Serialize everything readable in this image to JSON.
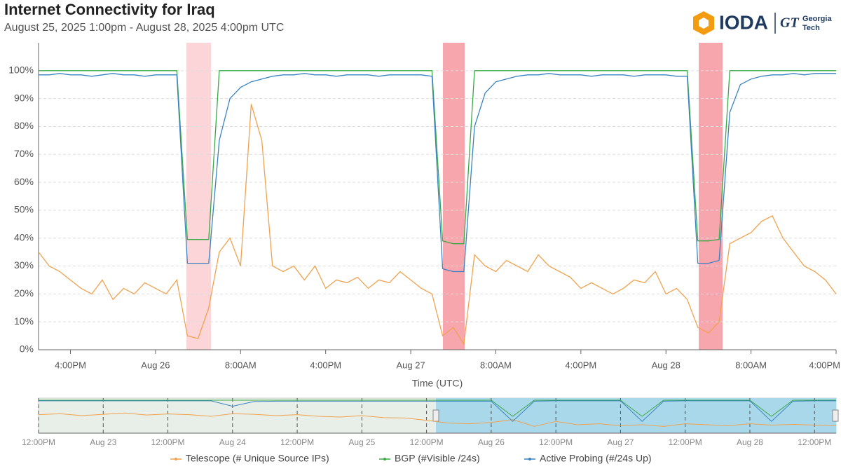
{
  "branding": {
    "logo": "IODA",
    "mark": "GT",
    "org_line1": "Georgia",
    "org_line2": "Tech"
  },
  "chart_data": [
    {
      "type": "line",
      "title": "Internet Connectivity for Iraq",
      "subtitle": "August 25, 2025 1:00pm - August 28, 2025 4:00pm UTC",
      "x_label": "Time (UTC)",
      "categories": [
        null,
        null,
        null,
        "4:00PM",
        null,
        null,
        null,
        null,
        null,
        null,
        null,
        "Aug 26",
        null,
        null,
        null,
        null,
        null,
        null,
        null,
        "8:00AM",
        null,
        null,
        null,
        null,
        null,
        null,
        null,
        "4:00PM",
        null,
        null,
        null,
        null,
        null,
        null,
        null,
        "Aug 27",
        null,
        null,
        null,
        null,
        null,
        null,
        null,
        "8:00AM",
        null,
        null,
        null,
        null,
        null,
        null,
        null,
        "4:00PM",
        null,
        null,
        null,
        null,
        null,
        null,
        null,
        "Aug 28",
        null,
        null,
        null,
        null,
        null,
        null,
        null,
        "8:00AM",
        null,
        null,
        null,
        null,
        null,
        null,
        null,
        "4:00PM"
      ],
      "ylim": [
        0,
        110
      ],
      "yticks": [
        {
          "value": 0,
          "label": "0%"
        },
        {
          "value": 10,
          "label": "10%"
        },
        {
          "value": 20,
          "label": "20%"
        },
        {
          "value": 30,
          "label": "30%"
        },
        {
          "value": 40,
          "label": "40%"
        },
        {
          "value": 50,
          "label": "50%"
        },
        {
          "value": 60,
          "label": "60%"
        },
        {
          "value": 70,
          "label": "70%"
        },
        {
          "value": 80,
          "label": "80%"
        },
        {
          "value": 90,
          "label": "90%"
        },
        {
          "value": 100,
          "label": "100%"
        }
      ],
      "grid": true,
      "legend": "bottom",
      "series": [
        {
          "name": "Telescope (# Unique Source IPs)",
          "color": "#f0a24f",
          "values": [
            35,
            30,
            28,
            25,
            22,
            20,
            25,
            18,
            22,
            20,
            24,
            22,
            20,
            25,
            5,
            4,
            15,
            35,
            40,
            30,
            88,
            75,
            30,
            28,
            30,
            25,
            30,
            22,
            25,
            24,
            26,
            22,
            25,
            24,
            28,
            25,
            22,
            20,
            5,
            8,
            2,
            34,
            30,
            28,
            32,
            30,
            28,
            34,
            30,
            28,
            26,
            22,
            24,
            22,
            20,
            22,
            25,
            24,
            28,
            20,
            22,
            18,
            8,
            6,
            10,
            38,
            40,
            42,
            46,
            48,
            40,
            35,
            30,
            28,
            25,
            20
          ]
        },
        {
          "name": "BGP (#Visible /24s)",
          "color": "#3aa846",
          "values": [
            100,
            100,
            100,
            100,
            100,
            100,
            100,
            100,
            100,
            100,
            100,
            100,
            100,
            100,
            39.5,
            39.5,
            39.5,
            100,
            100,
            100,
            100,
            100,
            100,
            100,
            100,
            100,
            100,
            100,
            100,
            100,
            100,
            100,
            100,
            100,
            100,
            100,
            100,
            100,
            39,
            38,
            38,
            100,
            100,
            100,
            100,
            100,
            100,
            100,
            100,
            100,
            100,
            100,
            100,
            100,
            100,
            100,
            100,
            100,
            100,
            100,
            100,
            100,
            39,
            39,
            39.5,
            100,
            100,
            100,
            100,
            100,
            100,
            100,
            100,
            100,
            100,
            100
          ]
        },
        {
          "name": "Active Probing (#/24s Up)",
          "color": "#3a83c2",
          "values": [
            98.5,
            98.5,
            99,
            98.5,
            98.5,
            98,
            98.5,
            99,
            98.5,
            98.5,
            98,
            98.5,
            98.5,
            98.5,
            31,
            31,
            31,
            75,
            90,
            94,
            96,
            97,
            98,
            98.5,
            98.5,
            99,
            98.5,
            98.5,
            98,
            98.5,
            98.5,
            98.5,
            98,
            98.5,
            98.5,
            98.5,
            98.5,
            98,
            29,
            28,
            28,
            80,
            92,
            96,
            97,
            98,
            98.5,
            98.5,
            99,
            98.5,
            98.5,
            98.5,
            98,
            98.5,
            98.5,
            98.5,
            98,
            98.5,
            98.5,
            98.5,
            98,
            98,
            31,
            31,
            32,
            85,
            95,
            97,
            98,
            98.5,
            98.5,
            99,
            98.5,
            99,
            99,
            99
          ]
        }
      ]
    },
    {
      "type": "line",
      "categories": [
        "12:00PM",
        null,
        null,
        "Aug 23",
        null,
        null,
        "12:00PM",
        null,
        null,
        "Aug 24",
        null,
        null,
        "12:00PM",
        null,
        null,
        "Aug 25",
        null,
        null,
        "12:00PM",
        null,
        null,
        "Aug 26",
        null,
        null,
        "12:00PM",
        null,
        null,
        "Aug 27",
        null,
        null,
        "12:00PM",
        null,
        null,
        "Aug 28",
        null,
        null,
        "12:00PM",
        null
      ],
      "ylim": [
        0,
        100
      ],
      "series": [
        {
          "name": "Telescope",
          "color": "#f0a24f",
          "values": [
            55,
            58,
            52,
            56,
            60,
            54,
            57,
            55,
            50,
            58,
            56,
            52,
            55,
            50,
            48,
            52,
            46,
            45,
            38,
            30,
            28,
            32,
            40,
            20,
            35,
            25,
            28,
            22,
            25,
            20,
            28,
            25,
            22,
            28,
            24,
            26,
            24,
            22
          ]
        },
        {
          "name": "BGP",
          "color": "#3aa846",
          "values": [
            98,
            98,
            98,
            98,
            98,
            98,
            98,
            98,
            98,
            98,
            98,
            98,
            98,
            98,
            98,
            98,
            98,
            98,
            98,
            98,
            98,
            98,
            50,
            98,
            98,
            98,
            98,
            98,
            50,
            98,
            98,
            98,
            98,
            98,
            50,
            98,
            98,
            98
          ]
        },
        {
          "name": "Active Probing",
          "color": "#3a83c2",
          "values": [
            96,
            96,
            96,
            96,
            96,
            96,
            96,
            96,
            96,
            80,
            94,
            95,
            95,
            95,
            95,
            95,
            95,
            95,
            95,
            95,
            95,
            95,
            35,
            95,
            96,
            96,
            96,
            96,
            35,
            95,
            96,
            96,
            96,
            96,
            35,
            95,
            96,
            96
          ]
        }
      ]
    }
  ]
}
